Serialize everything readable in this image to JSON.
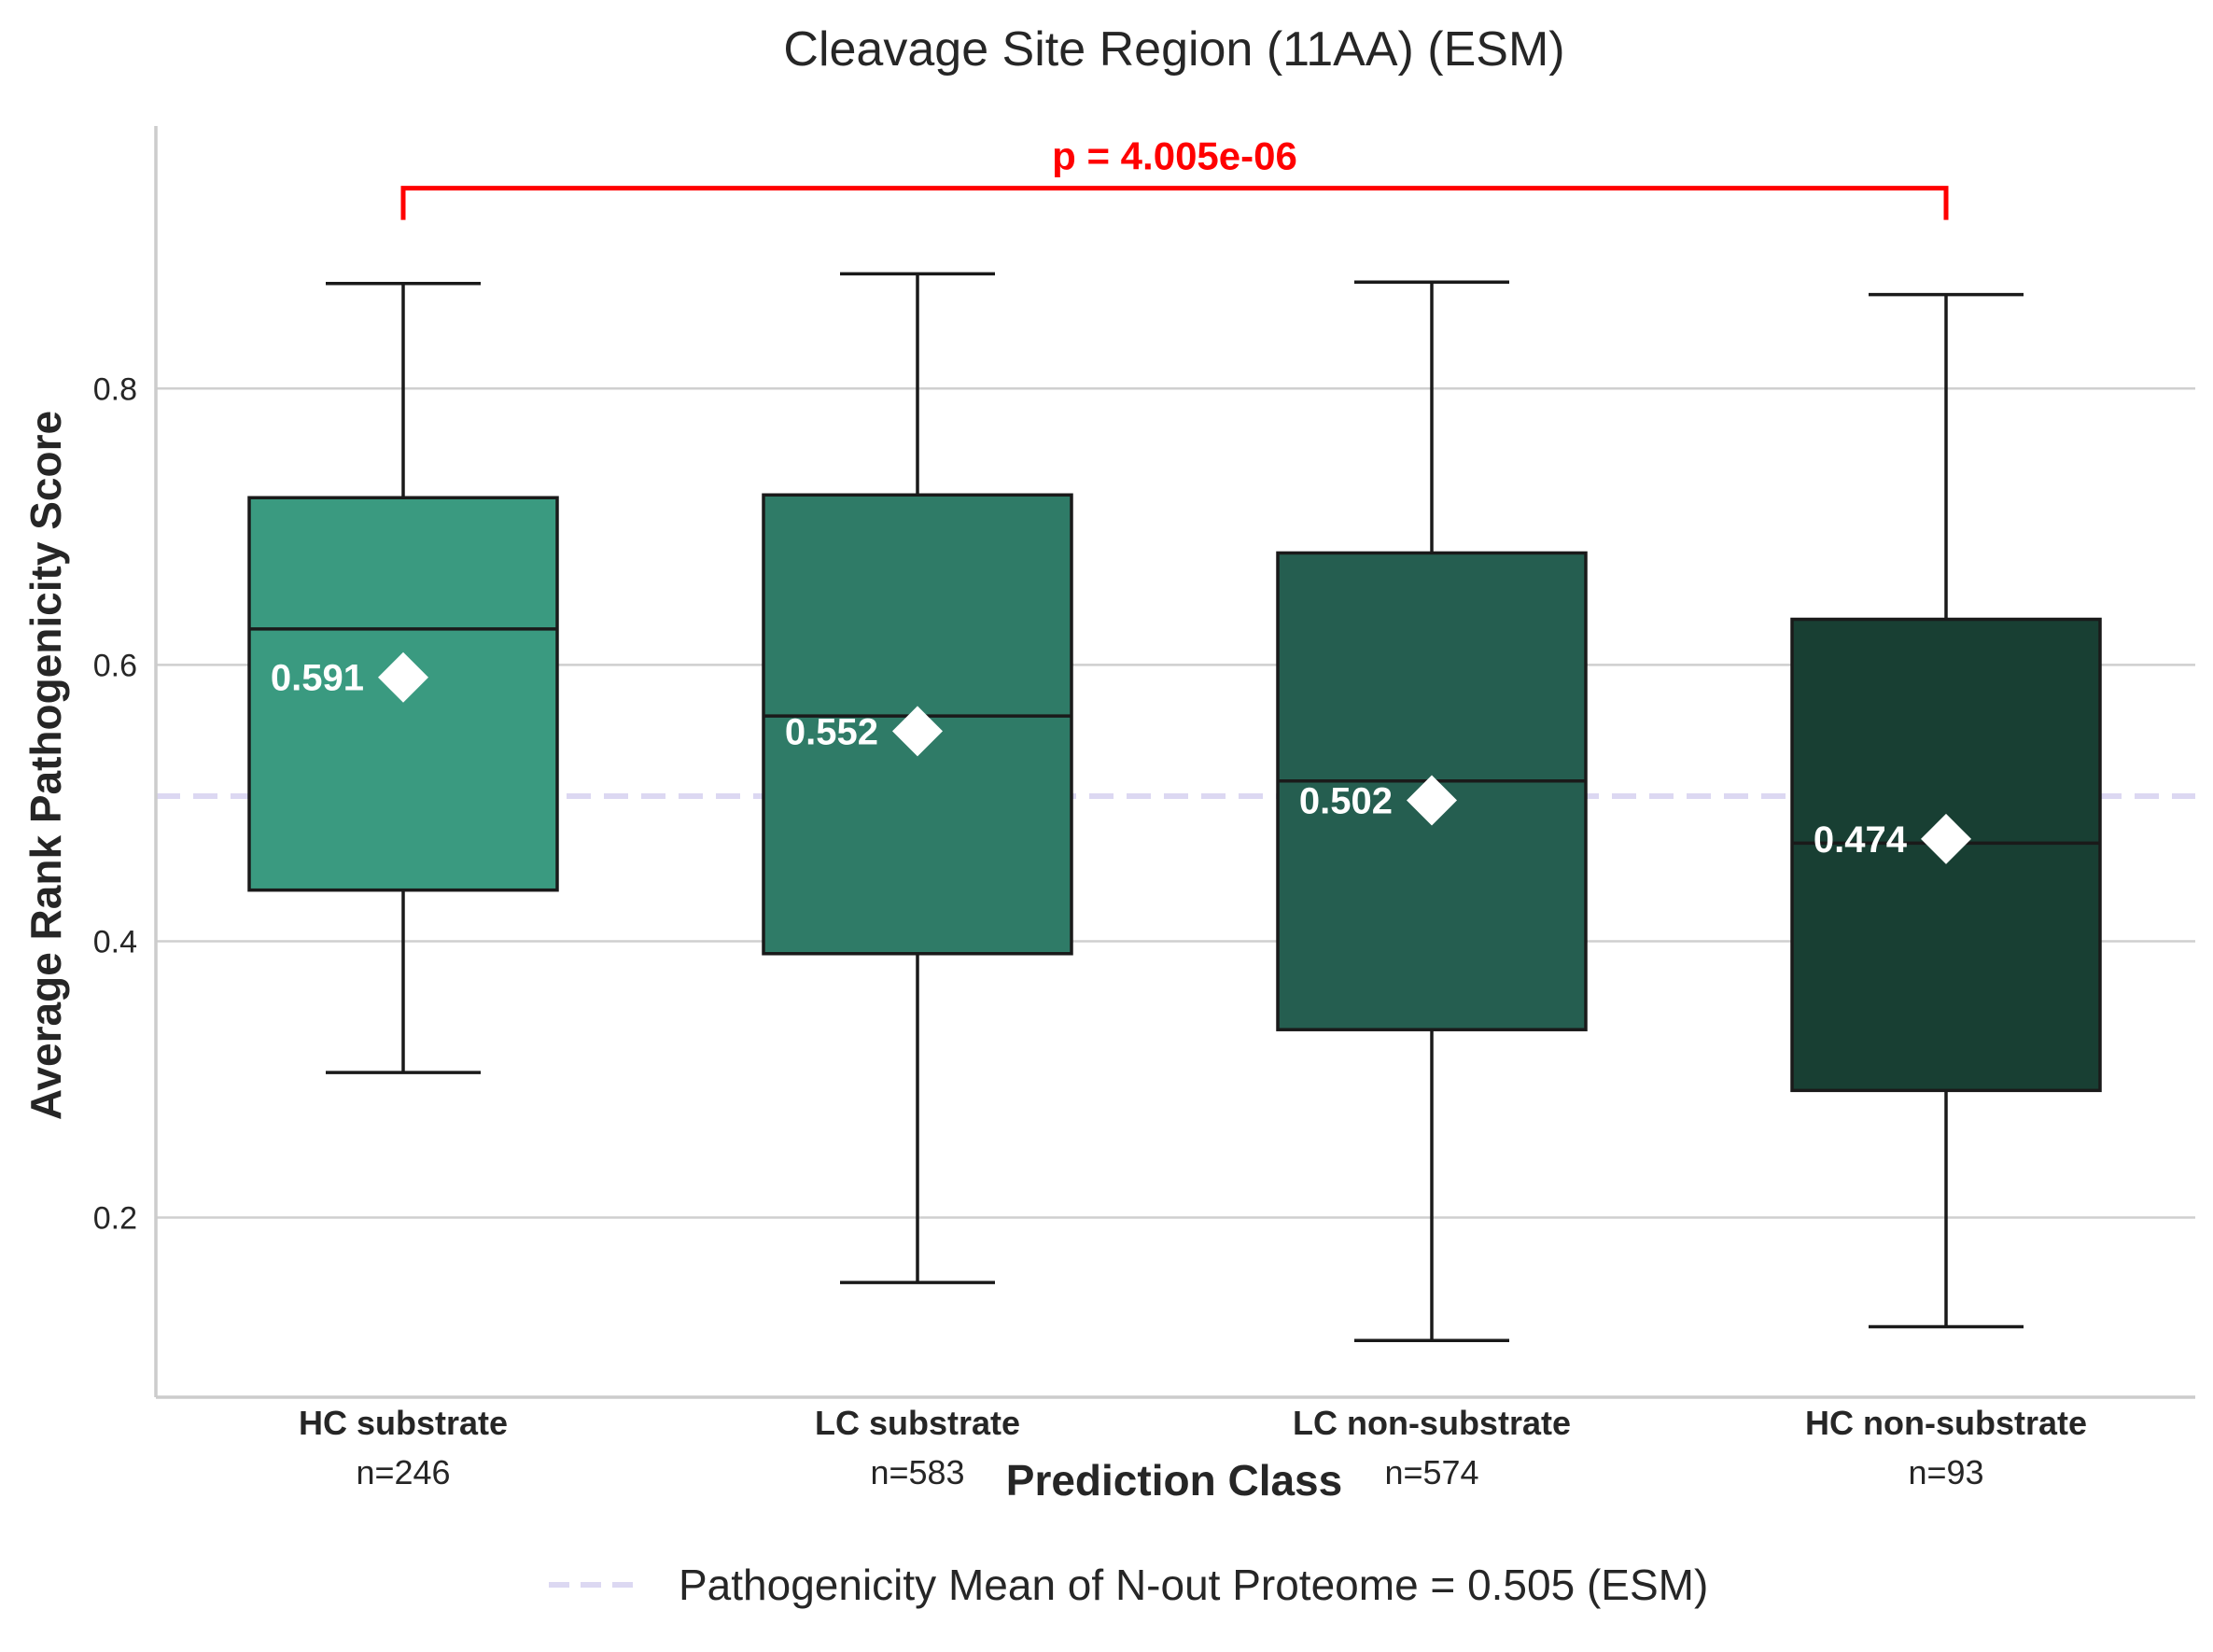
{
  "chart_data": {
    "type": "box",
    "title": "Cleavage Site Region (11AA) (ESM)",
    "xlabel": "Prediction Class",
    "ylabel": "Average Rank Pathogenicity Score",
    "ylim": [
      0.07,
      0.99
    ],
    "yticks": [
      0.2,
      0.4,
      0.6,
      0.8
    ],
    "ytick_labels": [
      "0.2",
      "0.4",
      "0.6",
      "0.8"
    ],
    "grid": "horizontal",
    "categories": [
      "HC substrate",
      "LC substrate",
      "LC non-substrate",
      "HC non-substrate"
    ],
    "counts": [
      "n=246",
      "n=583",
      "n=574",
      "n=93"
    ],
    "colors": [
      "#3a9a80",
      "#2f7b67",
      "#255e50",
      "#183f33"
    ],
    "boxes": [
      {
        "whisker_low": 0.305,
        "q1": 0.437,
        "median": 0.626,
        "q3": 0.721,
        "whisker_high": 0.876,
        "mean": 0.591
      },
      {
        "whisker_low": 0.153,
        "q1": 0.391,
        "median": 0.563,
        "q3": 0.723,
        "whisker_high": 0.883,
        "mean": 0.552
      },
      {
        "whisker_low": 0.111,
        "q1": 0.336,
        "median": 0.516,
        "q3": 0.681,
        "whisker_high": 0.877,
        "mean": 0.502
      },
      {
        "whisker_low": 0.121,
        "q1": 0.292,
        "median": 0.471,
        "q3": 0.633,
        "whisker_high": 0.868,
        "mean": 0.474
      }
    ],
    "mean_labels": [
      "0.591",
      "0.552",
      "0.502",
      "0.474"
    ],
    "reference_line": {
      "value": 0.505,
      "color": "#dcd8f2",
      "style": "dashed",
      "label": "Pathogenicity Mean of N-out Proteome = 0.505 (ESM)"
    },
    "significance": {
      "text": "p = 4.005e-06",
      "color": "#ff0000",
      "from_category": 0,
      "to_category": 3,
      "y_level": 0.945
    },
    "legend_position": "bottom-center"
  }
}
